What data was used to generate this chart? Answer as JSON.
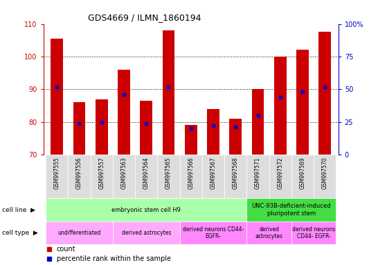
{
  "title": "GDS4669 / ILMN_1860194",
  "samples": [
    "GSM997555",
    "GSM997556",
    "GSM997557",
    "GSM997563",
    "GSM997564",
    "GSM997565",
    "GSM997566",
    "GSM997567",
    "GSM997568",
    "GSM997571",
    "GSM997572",
    "GSM997569",
    "GSM997570"
  ],
  "counts": [
    105.5,
    86.0,
    87.0,
    96.0,
    86.5,
    108.0,
    79.0,
    84.0,
    81.0,
    90.0,
    100.0,
    102.0,
    107.5
  ],
  "percentiles": [
    52,
    24,
    25,
    46,
    24,
    52,
    20,
    22,
    21,
    30,
    44,
    48,
    52
  ],
  "ylim_left": [
    70,
    110
  ],
  "ylim_right": [
    0,
    100
  ],
  "bar_color": "#cc0000",
  "dot_color": "#0000cc",
  "bar_bottom": 70,
  "cell_line_data": [
    {
      "label": "embryonic stem cell H9",
      "start": 0,
      "end": 9,
      "color": "#aaffaa"
    },
    {
      "label": "UNC-93B-deficient-induced\npluripotent stem",
      "start": 9,
      "end": 13,
      "color": "#44dd44"
    }
  ],
  "cell_type_data": [
    {
      "label": "undifferentiated",
      "start": 0,
      "end": 3,
      "color": "#ffaaff"
    },
    {
      "label": "derived astrocytes",
      "start": 3,
      "end": 6,
      "color": "#ffaaff"
    },
    {
      "label": "derived neurons CD44-\nEGFR-",
      "start": 6,
      "end": 9,
      "color": "#ff88ff"
    },
    {
      "label": "derived\nastrocytes",
      "start": 9,
      "end": 11,
      "color": "#ff88ff"
    },
    {
      "label": "derived neurons\nCD44- EGFR-",
      "start": 11,
      "end": 13,
      "color": "#ff88ff"
    }
  ],
  "tick_color_left": "#cc0000",
  "tick_color_right": "#0000cc",
  "grid_color": "#000000",
  "yticks_left": [
    70,
    80,
    90,
    100,
    110
  ],
  "yticks_right": [
    0,
    25,
    50,
    75,
    100
  ],
  "ytick_labels_right": [
    "0",
    "25",
    "50",
    "75",
    "100%"
  ],
  "xticklabel_bg": "#dddddd",
  "bar_width": 0.55,
  "legend_items": [
    {
      "color": "#cc0000",
      "label": "count"
    },
    {
      "color": "#0000cc",
      "label": "percentile rank within the sample"
    }
  ]
}
